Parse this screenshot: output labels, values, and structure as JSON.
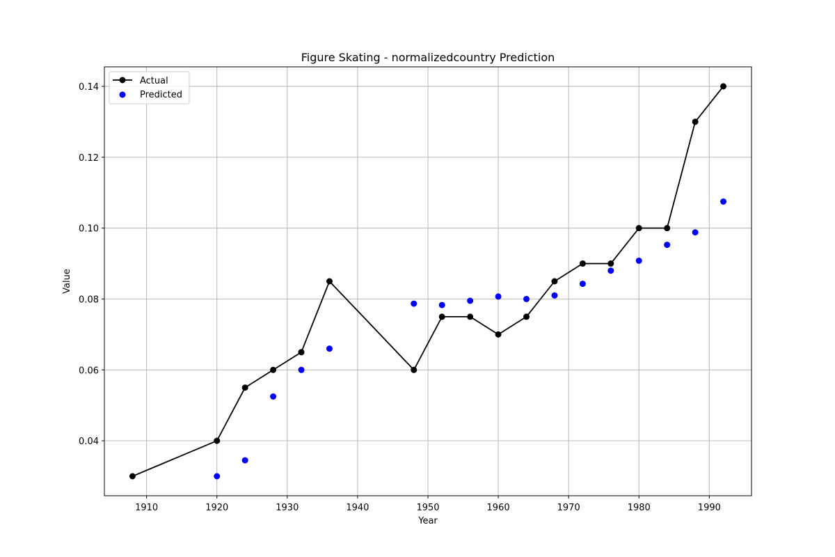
{
  "chart_data": {
    "type": "line",
    "title": "Figure Skating - normalizedcountry Prediction",
    "xlabel": "Year",
    "ylabel": "Value",
    "xlim": [
      1904,
      1996
    ],
    "ylim": [
      0.0245,
      0.1455
    ],
    "xticks": [
      1910,
      1920,
      1930,
      1940,
      1950,
      1960,
      1970,
      1980,
      1990
    ],
    "yticks": [
      0.04,
      0.06,
      0.08,
      0.1,
      0.12,
      0.14
    ],
    "ytick_labels": [
      "0.04",
      "0.06",
      "0.08",
      "0.10",
      "0.12",
      "0.14"
    ],
    "grid": true,
    "legend_position": "top-left",
    "series": [
      {
        "name": "Actual",
        "style": "line-with-markers",
        "color": "#000000",
        "x": [
          1908,
          1920,
          1924,
          1928,
          1932,
          1936,
          1948,
          1952,
          1956,
          1960,
          1964,
          1968,
          1972,
          1976,
          1980,
          1984,
          1988,
          1992
        ],
        "y": [
          0.03,
          0.04,
          0.055,
          0.06,
          0.065,
          0.085,
          0.06,
          0.075,
          0.075,
          0.07,
          0.075,
          0.085,
          0.09,
          0.09,
          0.1,
          0.1,
          0.13,
          0.14
        ]
      },
      {
        "name": "Predicted",
        "style": "scatter",
        "color": "#0000ff",
        "x": [
          1920,
          1924,
          1928,
          1932,
          1936,
          1948,
          1952,
          1956,
          1960,
          1964,
          1968,
          1972,
          1976,
          1980,
          1984,
          1988,
          1992
        ],
        "y": [
          0.03,
          0.0345,
          0.0525,
          0.06,
          0.066,
          0.0787,
          0.0783,
          0.0795,
          0.0807,
          0.08,
          0.081,
          0.0843,
          0.088,
          0.0908,
          0.0953,
          0.0988,
          0.1075
        ]
      }
    ]
  }
}
